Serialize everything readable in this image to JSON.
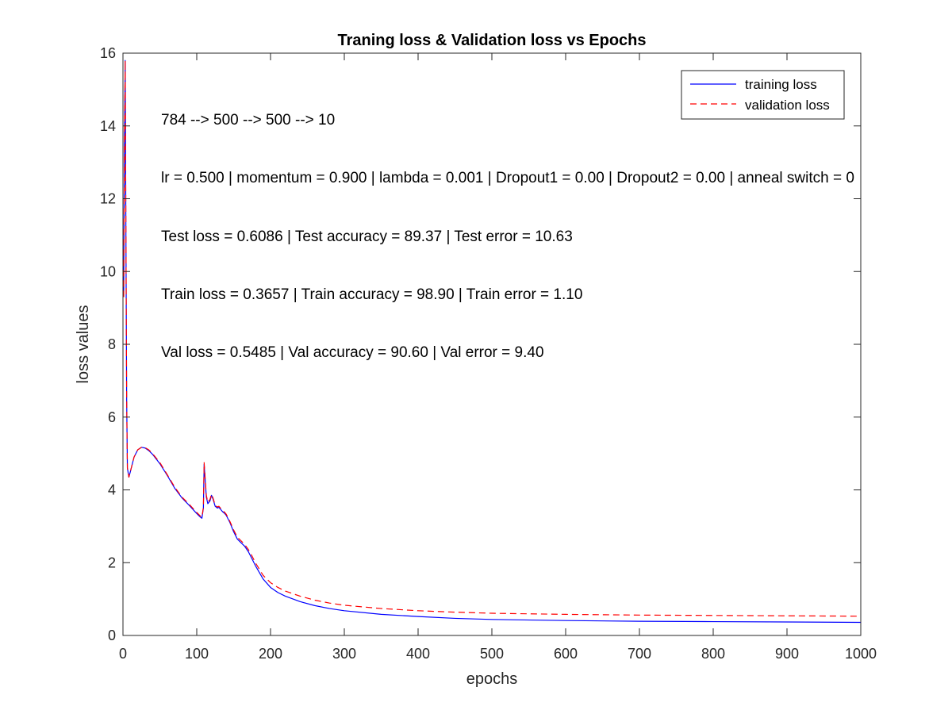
{
  "chart_data": {
    "type": "line",
    "title": "Traning loss & Validation loss vs Epochs",
    "xlabel": "epochs",
    "ylabel": "loss values",
    "xlim": [
      0,
      1000
    ],
    "ylim": [
      0,
      16
    ],
    "xticks": [
      0,
      100,
      200,
      300,
      400,
      500,
      600,
      700,
      800,
      900,
      1000
    ],
    "yticks": [
      0,
      2,
      4,
      6,
      8,
      10,
      12,
      14,
      16
    ],
    "grid": false,
    "legend_position": "top-right",
    "series": [
      {
        "name": "training loss",
        "color": "#0000ff",
        "style": "solid",
        "x": [
          1,
          2,
          3,
          4,
          5,
          6,
          8,
          10,
          15,
          20,
          25,
          30,
          35,
          40,
          50,
          60,
          70,
          80,
          90,
          100,
          105,
          107,
          109,
          110,
          111,
          113,
          115,
          118,
          120,
          122,
          125,
          128,
          130,
          133,
          135,
          138,
          140,
          145,
          150,
          155,
          160,
          165,
          170,
          175,
          180,
          190,
          200,
          210,
          220,
          240,
          260,
          280,
          300,
          350,
          400,
          450,
          500,
          600,
          700,
          800,
          900,
          1000
        ],
        "y": [
          9.3,
          13.5,
          15.8,
          11.0,
          6.5,
          4.6,
          4.35,
          4.5,
          4.9,
          5.1,
          5.17,
          5.15,
          5.08,
          4.98,
          4.72,
          4.4,
          4.05,
          3.78,
          3.57,
          3.35,
          3.25,
          3.22,
          3.5,
          4.7,
          4.4,
          3.8,
          3.62,
          3.7,
          3.85,
          3.75,
          3.55,
          3.5,
          3.52,
          3.45,
          3.4,
          3.35,
          3.3,
          3.1,
          2.85,
          2.65,
          2.55,
          2.45,
          2.3,
          2.1,
          1.9,
          1.55,
          1.32,
          1.18,
          1.08,
          0.93,
          0.82,
          0.74,
          0.68,
          0.58,
          0.52,
          0.47,
          0.44,
          0.41,
          0.39,
          0.38,
          0.37,
          0.36
        ]
      },
      {
        "name": "validation loss",
        "color": "#ff0000",
        "style": "dashed",
        "x": [
          1,
          2,
          3,
          4,
          5,
          6,
          8,
          10,
          15,
          20,
          25,
          30,
          35,
          40,
          50,
          60,
          70,
          80,
          90,
          100,
          105,
          107,
          109,
          110,
          111,
          113,
          115,
          118,
          120,
          122,
          125,
          128,
          130,
          133,
          135,
          138,
          140,
          145,
          150,
          155,
          160,
          165,
          170,
          175,
          180,
          190,
          200,
          210,
          220,
          240,
          260,
          280,
          300,
          350,
          400,
          450,
          500,
          600,
          700,
          800,
          900,
          1000
        ],
        "y": [
          9.3,
          13.5,
          15.8,
          11.0,
          6.5,
          4.6,
          4.35,
          4.5,
          4.9,
          5.1,
          5.17,
          5.16,
          5.1,
          5.0,
          4.75,
          4.42,
          4.08,
          3.8,
          3.6,
          3.38,
          3.28,
          3.25,
          3.52,
          4.75,
          4.45,
          3.85,
          3.66,
          3.74,
          3.88,
          3.78,
          3.58,
          3.53,
          3.55,
          3.48,
          3.43,
          3.38,
          3.33,
          3.13,
          2.9,
          2.7,
          2.6,
          2.5,
          2.36,
          2.18,
          1.98,
          1.65,
          1.45,
          1.32,
          1.22,
          1.08,
          0.97,
          0.89,
          0.83,
          0.74,
          0.68,
          0.64,
          0.61,
          0.58,
          0.56,
          0.55,
          0.54,
          0.53
        ]
      }
    ],
    "annotations": [
      "784 --> 500 --> 500 --> 10",
      "lr = 0.500 | momentum = 0.900 | lambda = 0.001 | Dropout1 = 0.00 | Dropout2 = 0.00 | anneal switch = 0",
      "Test loss = 0.6086 | Test accuracy = 89.37 | Test error = 10.63",
      "Train loss = 0.3657 | Train accuracy = 98.90 | Train error = 1.10",
      "Val loss = 0.5485 | Val accuracy = 90.60 | Val error = 9.40"
    ]
  }
}
